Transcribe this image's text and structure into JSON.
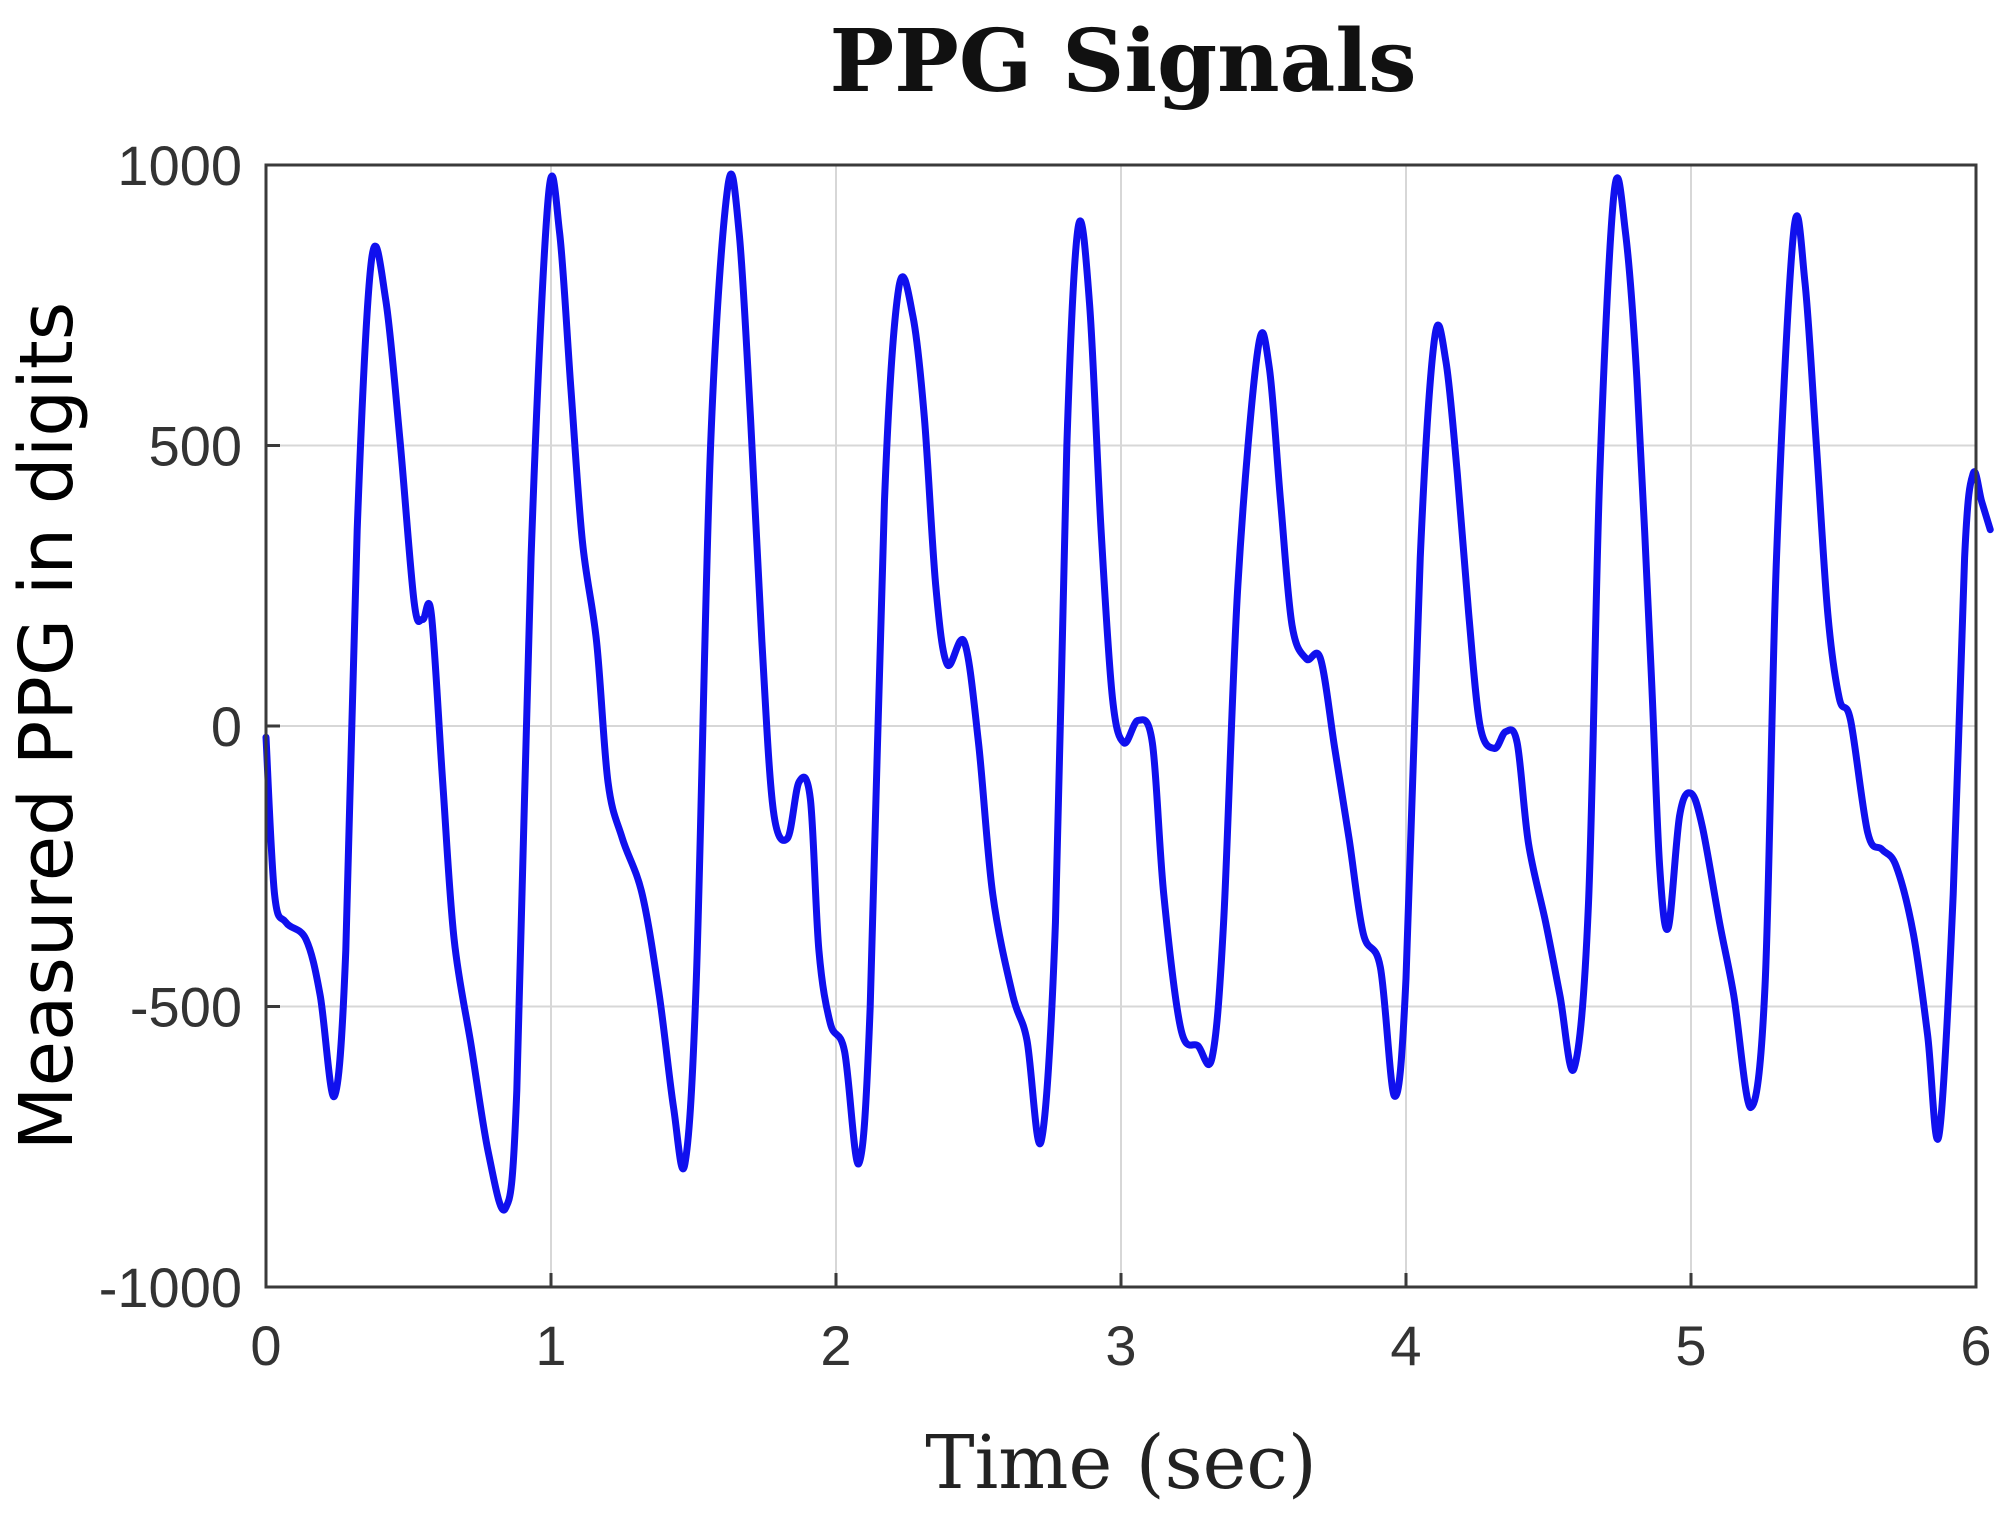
{
  "chart_data": {
    "type": "line",
    "title": "PPG Signals",
    "xlabel": "Time (sec)",
    "ylabel": "Measured PPG in digits",
    "xlim": [
      0,
      6
    ],
    "ylim": [
      -1000,
      1000
    ],
    "x_ticks": [
      0,
      1,
      2,
      3,
      4,
      5,
      6
    ],
    "y_ticks": [
      1000,
      500,
      0,
      -500,
      -1000
    ],
    "grid": true,
    "series": [
      {
        "color": "#1010ee",
        "points": [
          [
            0,
            -20
          ],
          [
            0.03,
            -300
          ],
          [
            0.07,
            -350
          ],
          [
            0.14,
            -380
          ],
          [
            0.19,
            -480
          ],
          [
            0.24,
            -660
          ],
          [
            0.28,
            -400
          ],
          [
            0.32,
            350
          ],
          [
            0.37,
            830
          ],
          [
            0.42,
            760
          ],
          [
            0.47,
            510
          ],
          [
            0.52,
            220
          ],
          [
            0.55,
            190
          ],
          [
            0.58,
            200
          ],
          [
            0.62,
            -100
          ],
          [
            0.66,
            -380
          ],
          [
            0.72,
            -570
          ],
          [
            0.78,
            -760
          ],
          [
            0.84,
            -860
          ],
          [
            0.88,
            -650
          ],
          [
            0.93,
            300
          ],
          [
            0.99,
            940
          ],
          [
            1.03,
            880
          ],
          [
            1.07,
            600
          ],
          [
            1.11,
            330
          ],
          [
            1.16,
            150
          ],
          [
            1.2,
            -100
          ],
          [
            1.25,
            -200
          ],
          [
            1.32,
            -300
          ],
          [
            1.38,
            -480
          ],
          [
            1.43,
            -680
          ],
          [
            1.47,
            -780
          ],
          [
            1.51,
            -450
          ],
          [
            1.56,
            500
          ],
          [
            1.62,
            960
          ],
          [
            1.66,
            880
          ],
          [
            1.7,
            550
          ],
          [
            1.74,
            150
          ],
          [
            1.78,
            -150
          ],
          [
            1.83,
            -200
          ],
          [
            1.87,
            -100
          ],
          [
            1.91,
            -130
          ],
          [
            1.94,
            -400
          ],
          [
            1.98,
            -530
          ],
          [
            2.03,
            -580
          ],
          [
            2.08,
            -780
          ],
          [
            2.12,
            -500
          ],
          [
            2.17,
            400
          ],
          [
            2.22,
            780
          ],
          [
            2.27,
            730
          ],
          [
            2.31,
            550
          ],
          [
            2.35,
            250
          ],
          [
            2.39,
            110
          ],
          [
            2.45,
            150
          ],
          [
            2.5,
            -30
          ],
          [
            2.55,
            -300
          ],
          [
            2.62,
            -480
          ],
          [
            2.67,
            -560
          ],
          [
            2.72,
            -740
          ],
          [
            2.77,
            -350
          ],
          [
            2.81,
            500
          ],
          [
            2.85,
            890
          ],
          [
            2.89,
            750
          ],
          [
            2.93,
            350
          ],
          [
            2.97,
            50
          ],
          [
            3.01,
            -30
          ],
          [
            3.06,
            10
          ],
          [
            3.11,
            -30
          ],
          [
            3.15,
            -300
          ],
          [
            3.21,
            -540
          ],
          [
            3.27,
            -570
          ],
          [
            3.32,
            -590
          ],
          [
            3.36,
            -350
          ],
          [
            3.41,
            250
          ],
          [
            3.48,
            670
          ],
          [
            3.52,
            640
          ],
          [
            3.56,
            400
          ],
          [
            3.6,
            180
          ],
          [
            3.65,
            120
          ],
          [
            3.7,
            120
          ],
          [
            3.75,
            -40
          ],
          [
            3.8,
            -200
          ],
          [
            3.85,
            -370
          ],
          [
            3.91,
            -430
          ],
          [
            3.96,
            -660
          ],
          [
            4.0,
            -450
          ],
          [
            4.05,
            300
          ],
          [
            4.1,
            690
          ],
          [
            4.14,
            650
          ],
          [
            4.18,
            450
          ],
          [
            4.22,
            200
          ],
          [
            4.26,
            0
          ],
          [
            4.31,
            -40
          ],
          [
            4.35,
            -10
          ],
          [
            4.39,
            -30
          ],
          [
            4.43,
            -210
          ],
          [
            4.49,
            -350
          ],
          [
            4.54,
            -480
          ],
          [
            4.59,
            -610
          ],
          [
            4.64,
            -320
          ],
          [
            4.68,
            450
          ],
          [
            4.73,
            950
          ],
          [
            4.77,
            880
          ],
          [
            4.81,
            620
          ],
          [
            4.86,
            100
          ],
          [
            4.89,
            -250
          ],
          [
            4.92,
            -360
          ],
          [
            4.96,
            -160
          ],
          [
            5.0,
            -120
          ],
          [
            5.04,
            -180
          ],
          [
            5.1,
            -350
          ],
          [
            5.15,
            -480
          ],
          [
            5.21,
            -680
          ],
          [
            5.26,
            -460
          ],
          [
            5.3,
            300
          ],
          [
            5.36,
            880
          ],
          [
            5.4,
            790
          ],
          [
            5.44,
            500
          ],
          [
            5.48,
            200
          ],
          [
            5.52,
            50
          ],
          [
            5.56,
            10
          ],
          [
            5.62,
            -190
          ],
          [
            5.67,
            -220
          ],
          [
            5.72,
            -250
          ],
          [
            5.78,
            -370
          ],
          [
            5.83,
            -550
          ],
          [
            5.87,
            -730
          ],
          [
            5.92,
            -300
          ],
          [
            5.96,
            300
          ],
          [
            5.99,
            450
          ],
          [
            6.02,
            400
          ],
          [
            6.05,
            350
          ]
        ]
      }
    ]
  }
}
